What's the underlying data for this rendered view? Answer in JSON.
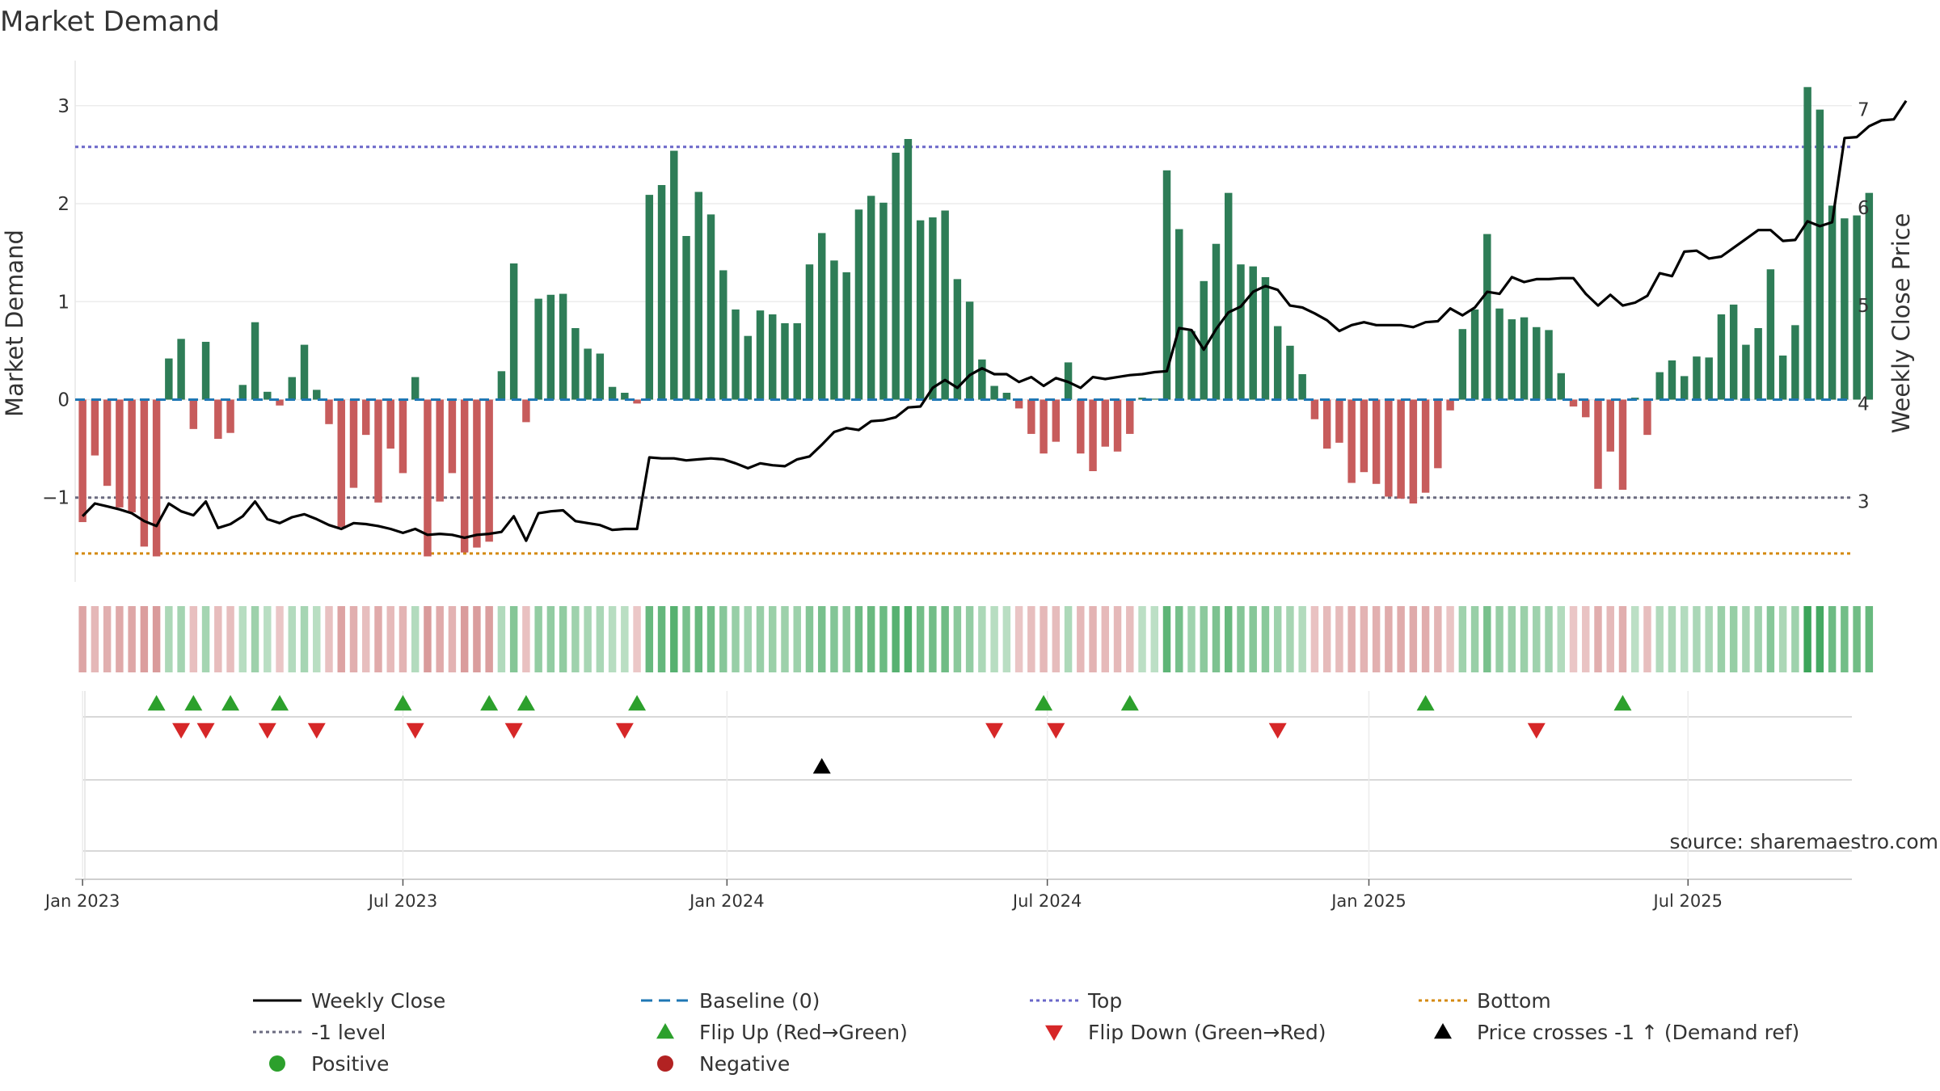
{
  "title": "Market Demand",
  "source_note": "source: sharemaestro.com",
  "colors": {
    "positive_bar": "#2e7d57",
    "negative_bar": "#c75c5c",
    "price_line": "#000000",
    "baseline": "#1f77b4",
    "top_line": "#6a67c9",
    "bottom_line": "#d4890f",
    "minus1_line": "#6b6b80",
    "flip_up": "#2ca02c",
    "flip_down": "#d62728",
    "cross_marker": "#000000"
  },
  "chart_data": {
    "type": "bar",
    "title": "Market Demand",
    "ylabel": "Market Demand",
    "ylabel_right": "Weekly Close Price",
    "ylim": [
      -1.86,
      3.46
    ],
    "ylim_right": [
      2.18,
      7.5
    ],
    "yticks": [
      {
        "v": -1,
        "label": "−1"
      },
      {
        "v": 0,
        "label": "0"
      },
      {
        "v": 1,
        "label": "1"
      },
      {
        "v": 2,
        "label": "2"
      },
      {
        "v": 3,
        "label": "3"
      }
    ],
    "yticks_right": [
      {
        "v": 3,
        "label": "3"
      },
      {
        "v": 4,
        "label": "4"
      },
      {
        "v": 5,
        "label": "5"
      },
      {
        "v": 6,
        "label": "6"
      },
      {
        "v": 7,
        "label": "7"
      }
    ],
    "week_range": [
      -0.6,
      143.6
    ],
    "x_ticks": [
      {
        "week": 0,
        "label": "Jan 2023"
      },
      {
        "week": 26,
        "label": "Jul 2023"
      },
      {
        "week": 52.3,
        "label": "Jan 2024"
      },
      {
        "week": 78.3,
        "label": "Jul 2024"
      },
      {
        "week": 104.4,
        "label": "Jan 2025"
      },
      {
        "week": 130.3,
        "label": "Jul 2025"
      }
    ],
    "levels": {
      "top": 2.58,
      "bottom": -1.57,
      "minus1": -1,
      "baseline": 0
    },
    "demand": [
      -1.25,
      -0.57,
      -0.88,
      -1.1,
      -1.15,
      -1.5,
      -1.6,
      0.42,
      0.62,
      -0.3,
      0.59,
      -0.4,
      -0.34,
      0.15,
      0.79,
      0.08,
      -0.06,
      0.23,
      0.56,
      0.1,
      -0.25,
      -1.3,
      -0.9,
      -0.36,
      -1.05,
      -0.5,
      -0.75,
      0.23,
      -1.6,
      -1.04,
      -0.75,
      -1.56,
      -1.51,
      -1.45,
      0.29,
      1.39,
      -0.23,
      1.03,
      1.07,
      1.08,
      0.73,
      0.52,
      0.47,
      0.13,
      0.07,
      -0.04,
      2.09,
      2.19,
      2.54,
      1.67,
      2.12,
      1.89,
      1.32,
      0.92,
      0.65,
      0.91,
      0.87,
      0.78,
      0.78,
      1.38,
      1.7,
      1.42,
      1.3,
      1.94,
      2.08,
      2.01,
      2.52,
      2.66,
      1.83,
      1.86,
      1.93,
      1.23,
      1.0,
      0.41,
      0.14,
      0.07,
      -0.09,
      -0.35,
      -0.55,
      -0.43,
      0.38,
      -0.55,
      -0.73,
      -0.48,
      -0.53,
      -0.35,
      0.02,
      0.01,
      2.34,
      1.74,
      0.7,
      1.21,
      1.59,
      2.11,
      1.38,
      1.36,
      1.25,
      0.75,
      0.55,
      0.26,
      -0.2,
      -0.5,
      -0.44,
      -0.85,
      -0.74,
      -0.86,
      -0.99,
      -1.01,
      -1.06,
      -0.95,
      -0.7,
      -0.11,
      0.72,
      0.92,
      1.69,
      0.93,
      0.82,
      0.84,
      0.74,
      0.71,
      0.27,
      -0.07,
      -0.18,
      -0.91,
      -0.53,
      -0.92,
      0.02,
      -0.36,
      0.28,
      0.4,
      0.24,
      0.44,
      0.43,
      0.87,
      0.97,
      0.56,
      0.73,
      1.33,
      0.45,
      0.76,
      3.19,
      2.96,
      1.98,
      1.85,
      1.88,
      2.11
    ],
    "weekly_close": [
      2.85,
      2.98,
      2.95,
      2.92,
      2.88,
      2.8,
      2.75,
      2.98,
      2.9,
      2.86,
      3.0,
      2.73,
      2.77,
      2.85,
      3.0,
      2.82,
      2.78,
      2.84,
      2.87,
      2.82,
      2.76,
      2.72,
      2.78,
      2.77,
      2.75,
      2.72,
      2.68,
      2.72,
      2.66,
      2.67,
      2.66,
      2.63,
      2.66,
      2.67,
      2.69,
      2.85,
      2.6,
      2.88,
      2.9,
      2.91,
      2.8,
      2.78,
      2.76,
      2.71,
      2.72,
      2.72,
      3.45,
      3.44,
      3.44,
      3.42,
      3.43,
      3.44,
      3.43,
      3.39,
      3.34,
      3.39,
      3.37,
      3.36,
      3.43,
      3.46,
      3.58,
      3.71,
      3.75,
      3.73,
      3.82,
      3.83,
      3.86,
      3.96,
      3.97,
      4.16,
      4.24,
      4.16,
      4.29,
      4.36,
      4.3,
      4.3,
      4.22,
      4.27,
      4.18,
      4.26,
      4.22,
      4.16,
      4.27,
      4.25,
      4.27,
      4.29,
      4.3,
      4.32,
      4.33,
      4.77,
      4.75,
      4.55,
      4.76,
      4.93,
      4.99,
      5.14,
      5.2,
      5.16,
      5.0,
      4.98,
      4.92,
      4.85,
      4.74,
      4.8,
      4.83,
      4.8,
      4.8,
      4.8,
      4.78,
      4.83,
      4.84,
      4.97,
      4.9,
      4.98,
      5.14,
      5.12,
      5.29,
      5.24,
      5.27,
      5.27,
      5.28,
      5.28,
      5.12,
      5.0,
      5.11,
      5.0,
      5.03,
      5.1,
      5.33,
      5.3,
      5.55,
      5.56,
      5.48,
      5.5,
      5.59,
      5.68,
      5.77,
      5.77,
      5.66,
      5.67,
      5.86,
      5.81,
      5.85,
      6.71,
      6.72,
      6.83,
      6.89,
      6.9,
      7.09
    ],
    "flip_up_weeks": [
      6,
      9,
      12,
      16,
      26,
      33,
      36,
      45,
      78,
      85,
      109,
      125
    ],
    "flip_down_weeks": [
      8,
      10,
      15,
      19,
      27,
      35,
      44,
      74,
      79,
      97,
      118
    ],
    "price_cross_weeks": [
      60
    ],
    "legend_entries": [
      {
        "label": "Weekly Close",
        "kind": "line-solid",
        "color": "#000000"
      },
      {
        "label": "Baseline (0)",
        "kind": "line-dashed",
        "color": "#1f77b4"
      },
      {
        "label": "Top",
        "kind": "line-dotted",
        "color": "#6a67c9"
      },
      {
        "label": "Bottom",
        "kind": "line-dotted",
        "color": "#d4890f"
      },
      {
        "label": "-1 level",
        "kind": "line-dotted",
        "color": "#6b6b80"
      },
      {
        "label": "Flip Up (Red→Green)",
        "kind": "tri-up",
        "color": "#2ca02c"
      },
      {
        "label": "Flip Down (Green→Red)",
        "kind": "tri-down",
        "color": "#d62728"
      },
      {
        "label": "Price crosses -1 ↑ (Demand ref)",
        "kind": "tri-up",
        "color": "#000000"
      },
      {
        "label": "Positive",
        "kind": "dot",
        "color": "#2ca02c"
      },
      {
        "label": "Negative",
        "kind": "dot",
        "color": "#b22222"
      }
    ]
  }
}
